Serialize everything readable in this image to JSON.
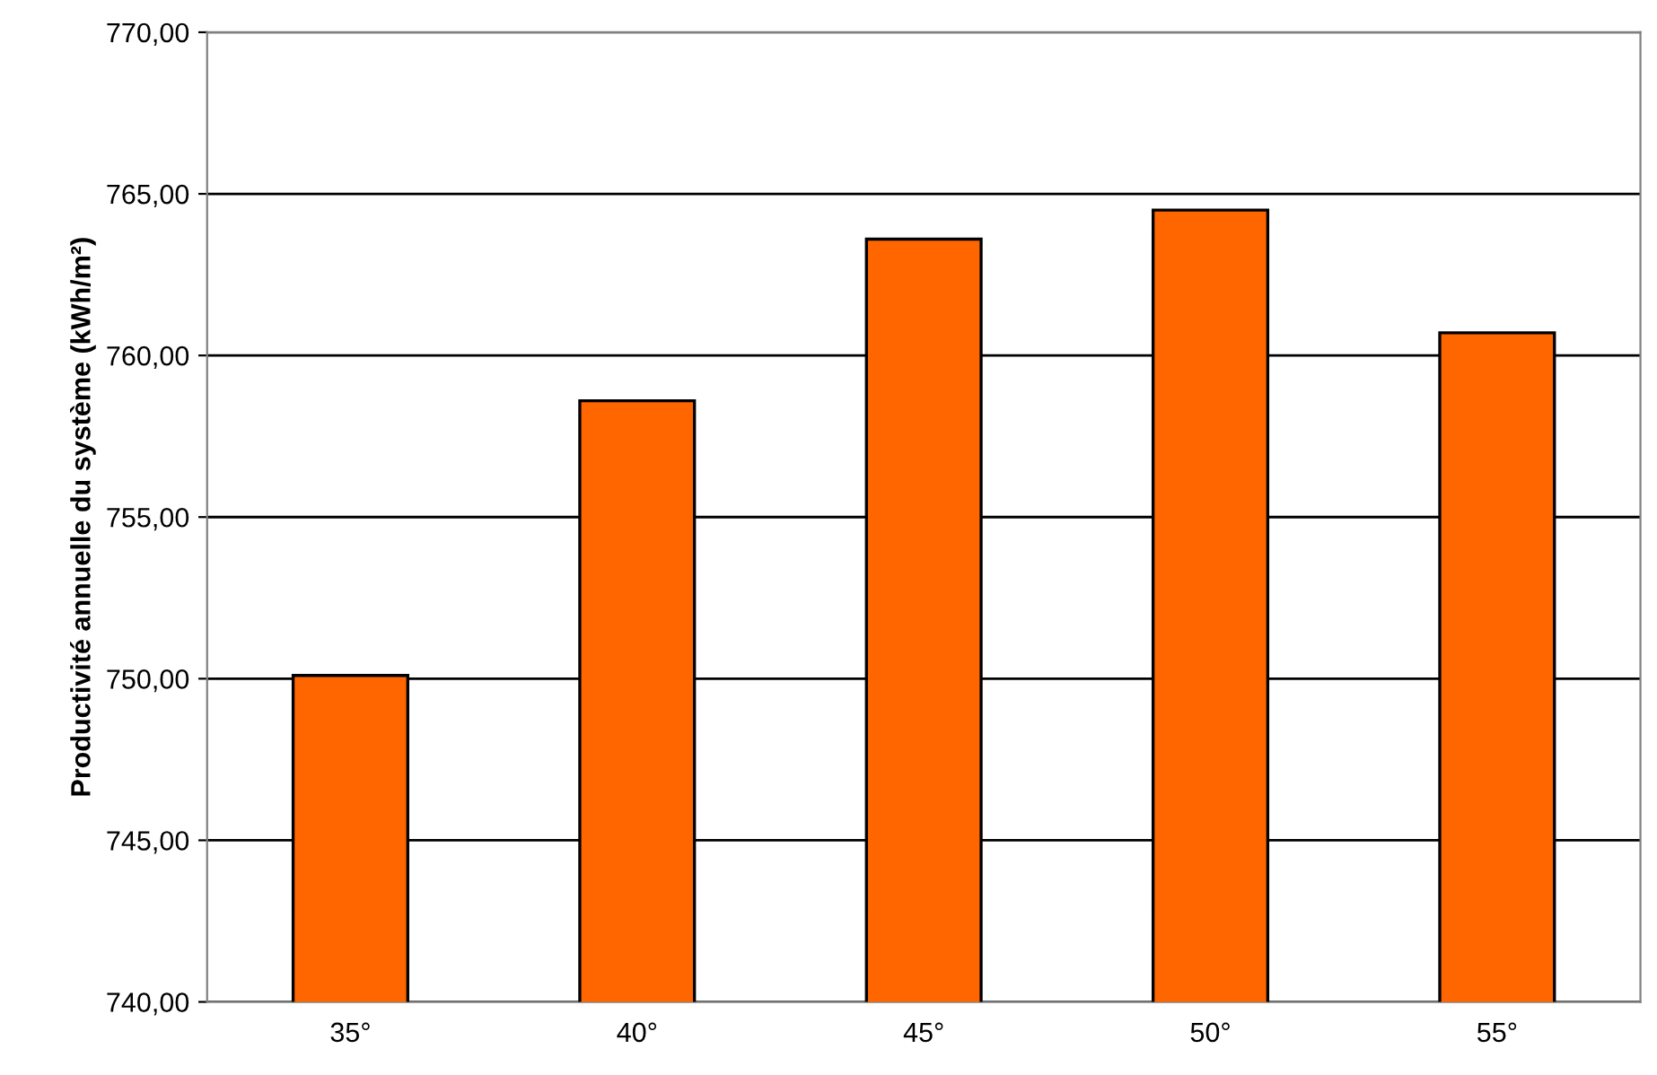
{
  "chart_data": {
    "type": "bar",
    "ylabel": "Productivité annuelle du système (kWh/m²)",
    "categories": [
      "35°",
      "40°",
      "45°",
      "50°",
      "55°"
    ],
    "values": [
      750.1,
      758.6,
      763.6,
      764.5,
      760.7
    ],
    "color": "#ff6600",
    "ylim": [
      740,
      770
    ],
    "yticks": [
      {
        "value": 740,
        "label": "740,00"
      },
      {
        "value": 745,
        "label": "745,00"
      },
      {
        "value": 750,
        "label": "750,00"
      },
      {
        "value": 755,
        "label": "755,00"
      },
      {
        "value": 760,
        "label": "760,00"
      },
      {
        "value": 765,
        "label": "765,00"
      },
      {
        "value": 770,
        "label": "770,00"
      }
    ],
    "grid": "y"
  }
}
